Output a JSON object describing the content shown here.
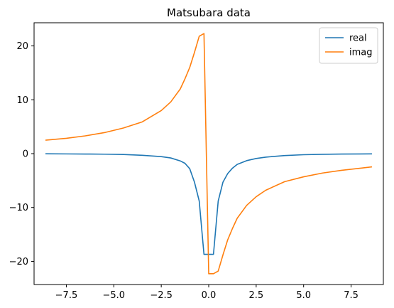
{
  "chart_data": {
    "type": "line",
    "title": "Matsubara data",
    "xlabel": "",
    "ylabel": "",
    "xlim": [
      -9.2,
      9.2
    ],
    "ylim": [
      -24.3,
      24.3
    ],
    "xticks": [
      -7.5,
      -5.0,
      -2.5,
      0.0,
      2.5,
      5.0,
      7.5
    ],
    "xtick_labels": [
      "−7.5",
      "−5.0",
      "−2.5",
      "0.0",
      "2.5",
      "5.0",
      "7.5"
    ],
    "yticks": [
      -20,
      -10,
      0,
      10,
      20
    ],
    "ytick_labels": [
      "−20",
      "−10",
      "0",
      "10",
      "20"
    ],
    "grid": false,
    "legend": "top-right",
    "series": [
      {
        "name": "real",
        "color": "#1f77b4",
        "points": [
          [
            -8.6,
            -0.03
          ],
          [
            -7.5,
            -0.05
          ],
          [
            -6.5,
            -0.07
          ],
          [
            -5.5,
            -0.1
          ],
          [
            -4.5,
            -0.15
          ],
          [
            -3.5,
            -0.3
          ],
          [
            -2.5,
            -0.55
          ],
          [
            -2.0,
            -0.8
          ],
          [
            -1.5,
            -1.35
          ],
          [
            -1.25,
            -1.8
          ],
          [
            -1.0,
            -2.8
          ],
          [
            -0.75,
            -5.3
          ],
          [
            -0.5,
            -8.8
          ],
          [
            -0.25,
            -18.7
          ],
          [
            0.0,
            -18.7
          ],
          [
            0.25,
            -18.7
          ],
          [
            0.5,
            -8.8
          ],
          [
            0.75,
            -5.3
          ],
          [
            1.0,
            -3.7
          ],
          [
            1.25,
            -2.7
          ],
          [
            1.5,
            -2.0
          ],
          [
            2.0,
            -1.3
          ],
          [
            2.5,
            -0.9
          ],
          [
            3.0,
            -0.65
          ],
          [
            4.0,
            -0.35
          ],
          [
            5.0,
            -0.2
          ],
          [
            6.0,
            -0.12
          ],
          [
            7.0,
            -0.08
          ],
          [
            8.6,
            -0.04
          ]
        ]
      },
      {
        "name": "imag",
        "color": "#ff7f0e",
        "points": [
          [
            -8.6,
            2.5
          ],
          [
            -7.5,
            2.85
          ],
          [
            -6.5,
            3.3
          ],
          [
            -5.5,
            3.9
          ],
          [
            -4.5,
            4.75
          ],
          [
            -3.5,
            5.9
          ],
          [
            -2.5,
            8.0
          ],
          [
            -2.0,
            9.6
          ],
          [
            -1.5,
            12.0
          ],
          [
            -1.25,
            13.9
          ],
          [
            -1.0,
            16.0
          ],
          [
            -0.75,
            18.8
          ],
          [
            -0.5,
            21.8
          ],
          [
            -0.25,
            22.3
          ],
          [
            0.0,
            -22.3
          ],
          [
            0.25,
            -22.3
          ],
          [
            0.5,
            -21.8
          ],
          [
            0.75,
            -18.8
          ],
          [
            1.0,
            -16.0
          ],
          [
            1.25,
            -13.9
          ],
          [
            1.5,
            -12.0
          ],
          [
            2.0,
            -9.6
          ],
          [
            2.5,
            -8.0
          ],
          [
            3.0,
            -6.8
          ],
          [
            4.0,
            -5.2
          ],
          [
            5.0,
            -4.3
          ],
          [
            6.0,
            -3.6
          ],
          [
            7.0,
            -3.1
          ],
          [
            8.6,
            -2.45
          ]
        ]
      }
    ]
  }
}
